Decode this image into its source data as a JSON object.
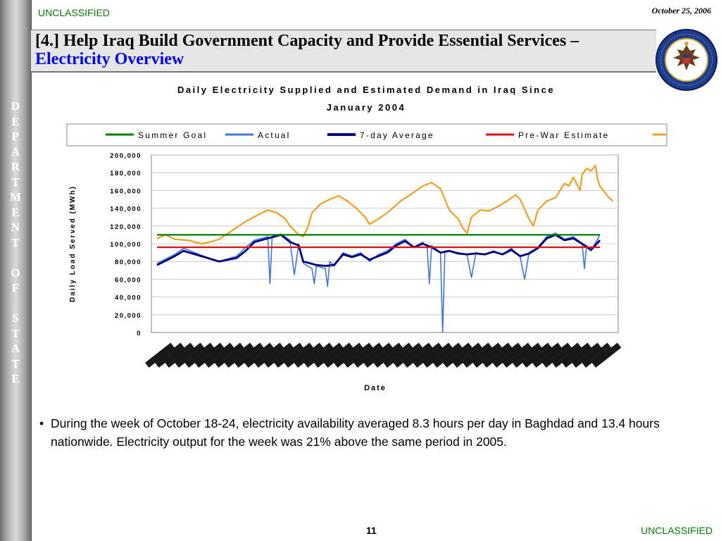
{
  "header": {
    "classification": "UNCLASSIFIED",
    "date": "October 25, 2006",
    "title_main": "[4.] Help Iraq Build Government Capacity and Provide Essential Services – ",
    "title_highlight": "Electricity Overview"
  },
  "sidebar": {
    "text": "DEPARTMENT OF STATE"
  },
  "seal": {
    "ring_text": "DEPARTMENT OF STATE • UNITED STATES OF AMERICA"
  },
  "colors": {
    "summer_goal": "#008000",
    "actual": "#3b78e0",
    "seven_day_average": "#000080",
    "pre_war_estimate": "#e01010",
    "estimated_demand": "#f0a020",
    "classification": "#008000",
    "title_highlight": "#0000ff"
  },
  "chart_data": {
    "type": "line",
    "title": "Daily Electricity Supplied and Estimated Demand in Iraq Since January 2004",
    "ylabel": "Daily Load Served (MWh)",
    "xlabel": "Date",
    "ylim": [
      0,
      200000
    ],
    "yticks": [
      "200,000",
      "180,000",
      "160,000",
      "140,000",
      "120,000",
      "100,000",
      "80,000",
      "60,000",
      "40,000",
      "20,000",
      "0"
    ],
    "grid": true,
    "legend_position": "top",
    "x_note": "daily dates from January 2004 to October 2006; tick labels illegible",
    "series": [
      {
        "name": "Summer Goal",
        "color_key": "summer_goal",
        "points": [
          [
            0,
            110000
          ],
          [
            1,
            110000
          ]
        ]
      },
      {
        "name": "Actual",
        "color_key": "actual",
        "points": [
          [
            0.0,
            78000
          ],
          [
            0.04,
            88000
          ],
          [
            0.06,
            95000
          ],
          [
            0.1,
            87000
          ],
          [
            0.14,
            80000
          ],
          [
            0.18,
            86000
          ],
          [
            0.2,
            96000
          ],
          [
            0.22,
            104000
          ],
          [
            0.25,
            108000
          ],
          [
            0.255,
            55000
          ],
          [
            0.26,
            108000
          ],
          [
            0.28,
            111000
          ],
          [
            0.3,
            104000
          ],
          [
            0.31,
            65000
          ],
          [
            0.32,
            100000
          ],
          [
            0.33,
            78000
          ],
          [
            0.35,
            72000
          ],
          [
            0.355,
            55000
          ],
          [
            0.36,
            75000
          ],
          [
            0.38,
            72000
          ],
          [
            0.385,
            52000
          ],
          [
            0.39,
            80000
          ],
          [
            0.4,
            75000
          ],
          [
            0.42,
            90000
          ],
          [
            0.44,
            86000
          ],
          [
            0.46,
            90000
          ],
          [
            0.48,
            80000
          ],
          [
            0.5,
            88000
          ],
          [
            0.52,
            92000
          ],
          [
            0.54,
            100000
          ],
          [
            0.56,
            105000
          ],
          [
            0.58,
            96000
          ],
          [
            0.6,
            102000
          ],
          [
            0.61,
            96000
          ],
          [
            0.615,
            55000
          ],
          [
            0.62,
            98000
          ],
          [
            0.64,
            90000
          ],
          [
            0.645,
            0
          ],
          [
            0.65,
            92000
          ],
          [
            0.68,
            90000
          ],
          [
            0.7,
            88000
          ],
          [
            0.71,
            62000
          ],
          [
            0.72,
            90000
          ],
          [
            0.74,
            88000
          ],
          [
            0.76,
            92000
          ],
          [
            0.78,
            88000
          ],
          [
            0.8,
            95000
          ],
          [
            0.82,
            85000
          ],
          [
            0.83,
            60000
          ],
          [
            0.84,
            90000
          ],
          [
            0.86,
            96000
          ],
          [
            0.88,
            108000
          ],
          [
            0.9,
            112000
          ],
          [
            0.92,
            105000
          ],
          [
            0.94,
            108000
          ],
          [
            0.96,
            100000
          ],
          [
            0.965,
            72000
          ],
          [
            0.97,
            98000
          ],
          [
            0.98,
            92000
          ],
          [
            1.0,
            110000
          ]
        ]
      },
      {
        "name": "7-day Average",
        "color_key": "seven_day_average",
        "points": [
          [
            0.0,
            76000
          ],
          [
            0.04,
            86000
          ],
          [
            0.06,
            92000
          ],
          [
            0.1,
            86000
          ],
          [
            0.14,
            80000
          ],
          [
            0.18,
            84000
          ],
          [
            0.2,
            92000
          ],
          [
            0.22,
            102000
          ],
          [
            0.25,
            106000
          ],
          [
            0.28,
            110000
          ],
          [
            0.3,
            102000
          ],
          [
            0.32,
            98000
          ],
          [
            0.33,
            80000
          ],
          [
            0.36,
            76000
          ],
          [
            0.38,
            75000
          ],
          [
            0.4,
            76000
          ],
          [
            0.42,
            88000
          ],
          [
            0.44,
            85000
          ],
          [
            0.46,
            88000
          ],
          [
            0.48,
            82000
          ],
          [
            0.5,
            86000
          ],
          [
            0.52,
            90000
          ],
          [
            0.54,
            98000
          ],
          [
            0.56,
            103000
          ],
          [
            0.58,
            96000
          ],
          [
            0.6,
            100000
          ],
          [
            0.62,
            96000
          ],
          [
            0.64,
            90000
          ],
          [
            0.66,
            92000
          ],
          [
            0.68,
            89000
          ],
          [
            0.7,
            88000
          ],
          [
            0.72,
            89000
          ],
          [
            0.74,
            88000
          ],
          [
            0.76,
            91000
          ],
          [
            0.78,
            88000
          ],
          [
            0.8,
            93000
          ],
          [
            0.82,
            86000
          ],
          [
            0.84,
            89000
          ],
          [
            0.86,
            95000
          ],
          [
            0.88,
            106000
          ],
          [
            0.9,
            110000
          ],
          [
            0.92,
            104000
          ],
          [
            0.94,
            106000
          ],
          [
            0.96,
            100000
          ],
          [
            0.98,
            93000
          ],
          [
            1.0,
            104000
          ]
        ]
      },
      {
        "name": "Pre-War Estimate",
        "color_key": "pre_war_estimate",
        "points": [
          [
            0,
            96000
          ],
          [
            1,
            96000
          ]
        ]
      },
      {
        "name": "",
        "color_key": "estimated_demand",
        "points": [
          [
            0.0,
            106000
          ],
          [
            0.02,
            110000
          ],
          [
            0.04,
            105000
          ],
          [
            0.07,
            104000
          ],
          [
            0.1,
            100000
          ],
          [
            0.12,
            102000
          ],
          [
            0.14,
            105000
          ],
          [
            0.17,
            115000
          ],
          [
            0.2,
            125000
          ],
          [
            0.23,
            133000
          ],
          [
            0.25,
            138000
          ],
          [
            0.27,
            135000
          ],
          [
            0.29,
            128000
          ],
          [
            0.3,
            120000
          ],
          [
            0.32,
            110000
          ],
          [
            0.33,
            108000
          ],
          [
            0.34,
            118000
          ],
          [
            0.35,
            135000
          ],
          [
            0.37,
            145000
          ],
          [
            0.39,
            150000
          ],
          [
            0.41,
            154000
          ],
          [
            0.43,
            148000
          ],
          [
            0.45,
            140000
          ],
          [
            0.47,
            130000
          ],
          [
            0.48,
            122000
          ],
          [
            0.5,
            128000
          ],
          [
            0.52,
            135000
          ],
          [
            0.55,
            148000
          ],
          [
            0.58,
            158000
          ],
          [
            0.6,
            165000
          ],
          [
            0.62,
            169000
          ],
          [
            0.64,
            162000
          ],
          [
            0.65,
            150000
          ],
          [
            0.66,
            138000
          ],
          [
            0.68,
            128000
          ],
          [
            0.69,
            118000
          ],
          [
            0.7,
            112000
          ],
          [
            0.71,
            130000
          ],
          [
            0.73,
            138000
          ],
          [
            0.75,
            137000
          ],
          [
            0.77,
            142000
          ],
          [
            0.79,
            148000
          ],
          [
            0.81,
            155000
          ],
          [
            0.82,
            150000
          ],
          [
            0.84,
            128000
          ],
          [
            0.85,
            120000
          ],
          [
            0.86,
            138000
          ],
          [
            0.88,
            148000
          ],
          [
            0.9,
            152000
          ],
          [
            0.91,
            160000
          ],
          [
            0.92,
            168000
          ],
          [
            0.93,
            165000
          ],
          [
            0.94,
            175000
          ],
          [
            0.955,
            160000
          ],
          [
            0.96,
            178000
          ],
          [
            0.97,
            185000
          ],
          [
            0.98,
            182000
          ],
          [
            0.99,
            188000
          ],
          [
            0.995,
            172000
          ],
          [
            1.0,
            165000
          ],
          [
            1.02,
            152000
          ],
          [
            1.03,
            148000
          ]
        ]
      }
    ]
  },
  "bullet": {
    "marker": "•",
    "text": "During the week of October 18-24, electricity availability averaged 8.3 hours per day in Baghdad and 13.4 hours nationwide.  Electricity output for the week was 21% above the same period in 2005."
  },
  "footer": {
    "page_number": "11",
    "classification": "UNCLASSIFIED"
  }
}
